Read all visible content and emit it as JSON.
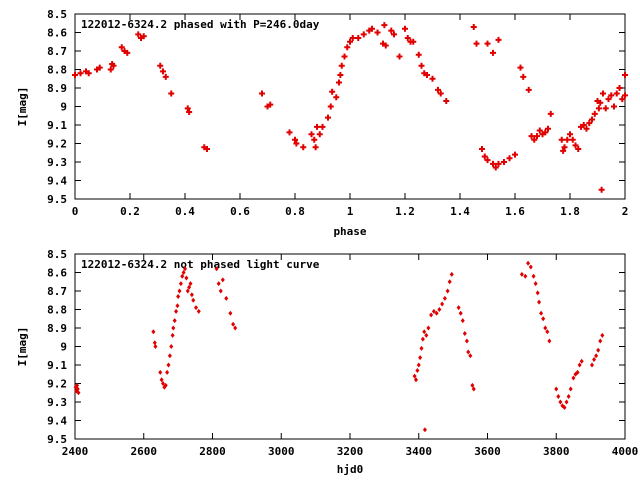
{
  "chart_data": [
    {
      "type": "scatter",
      "title": "122012-6324.2 phased with P=246.0day",
      "xlabel": "phase",
      "ylabel": "I[mag]",
      "xlim": [
        0,
        2
      ],
      "ylim": [
        8.5,
        9.5
      ],
      "y_inverted": true,
      "xticks": [
        0,
        0.2,
        0.4,
        0.6,
        0.8,
        1,
        1.2,
        1.4,
        1.6,
        1.8,
        2
      ],
      "xticklabels": [
        "0",
        "0.2",
        "0.4",
        "0.6",
        "0.8",
        "1",
        "1.2",
        "1.4",
        "1.6",
        "1.8",
        "2"
      ],
      "yticks": [
        8.5,
        8.6,
        8.7,
        8.8,
        8.9,
        9,
        9.1,
        9.2,
        9.3,
        9.4,
        9.5
      ],
      "yticklabels": [
        "8.5",
        "8.6",
        "8.7",
        "8.8",
        "8.9",
        "9",
        "9.1",
        "9.2",
        "9.3",
        "9.4",
        "9.5"
      ],
      "marker": "cross",
      "color": "#e00000",
      "points": [
        [
          0.0,
          8.83
        ],
        [
          0.02,
          8.82
        ],
        [
          0.04,
          8.81
        ],
        [
          0.05,
          8.82
        ],
        [
          0.08,
          8.8
        ],
        [
          0.09,
          8.79
        ],
        [
          0.13,
          8.8
        ],
        [
          0.135,
          8.77
        ],
        [
          0.14,
          8.78
        ],
        [
          0.17,
          8.68
        ],
        [
          0.18,
          8.7
        ],
        [
          0.19,
          8.71
        ],
        [
          0.23,
          8.61
        ],
        [
          0.24,
          8.63
        ],
        [
          0.25,
          8.62
        ],
        [
          0.31,
          8.78
        ],
        [
          0.32,
          8.81
        ],
        [
          0.33,
          8.84
        ],
        [
          0.35,
          8.93
        ],
        [
          0.41,
          9.01
        ],
        [
          0.415,
          9.03
        ],
        [
          0.47,
          9.22
        ],
        [
          0.48,
          9.23
        ],
        [
          0.68,
          8.93
        ],
        [
          0.7,
          9.0
        ],
        [
          0.71,
          8.99
        ],
        [
          0.78,
          9.14
        ],
        [
          0.8,
          9.18
        ],
        [
          0.805,
          9.2
        ],
        [
          0.83,
          9.22
        ],
        [
          0.86,
          9.15
        ],
        [
          0.87,
          9.18
        ],
        [
          0.875,
          9.22
        ],
        [
          0.88,
          9.11
        ],
        [
          0.89,
          9.15
        ],
        [
          0.9,
          9.11
        ],
        [
          0.92,
          9.06
        ],
        [
          0.93,
          9.0
        ],
        [
          0.935,
          8.92
        ],
        [
          0.95,
          8.95
        ],
        [
          0.96,
          8.87
        ],
        [
          0.965,
          8.83
        ],
        [
          0.97,
          8.78
        ],
        [
          0.98,
          8.73
        ],
        [
          0.99,
          8.68
        ],
        [
          1.0,
          8.65
        ],
        [
          1.01,
          8.63
        ],
        [
          1.03,
          8.63
        ],
        [
          1.05,
          8.61
        ],
        [
          1.07,
          8.59
        ],
        [
          1.08,
          8.58
        ],
        [
          1.1,
          8.6
        ],
        [
          1.12,
          8.66
        ],
        [
          1.125,
          8.56
        ],
        [
          1.13,
          8.67
        ],
        [
          1.15,
          8.59
        ],
        [
          1.16,
          8.61
        ],
        [
          1.18,
          8.73
        ],
        [
          1.2,
          8.58
        ],
        [
          1.21,
          8.63
        ],
        [
          1.22,
          8.65
        ],
        [
          1.23,
          8.65
        ],
        [
          1.25,
          8.72
        ],
        [
          1.26,
          8.78
        ],
        [
          1.27,
          8.82
        ],
        [
          1.28,
          8.83
        ],
        [
          1.3,
          8.85
        ],
        [
          1.32,
          8.91
        ],
        [
          1.33,
          8.93
        ],
        [
          1.35,
          8.97
        ],
        [
          1.45,
          8.57
        ],
        [
          1.46,
          8.66
        ],
        [
          1.5,
          8.66
        ],
        [
          1.52,
          8.71
        ],
        [
          1.54,
          8.64
        ],
        [
          1.48,
          9.23
        ],
        [
          1.49,
          9.27
        ],
        [
          1.5,
          9.29
        ],
        [
          1.52,
          9.31
        ],
        [
          1.53,
          9.33
        ],
        [
          1.54,
          9.31
        ],
        [
          1.56,
          9.3
        ],
        [
          1.58,
          9.28
        ],
        [
          1.6,
          9.26
        ],
        [
          1.62,
          8.79
        ],
        [
          1.63,
          8.84
        ],
        [
          1.65,
          8.91
        ],
        [
          1.66,
          9.16
        ],
        [
          1.67,
          9.18
        ],
        [
          1.68,
          9.16
        ],
        [
          1.69,
          9.13
        ],
        [
          1.7,
          9.15
        ],
        [
          1.71,
          9.14
        ],
        [
          1.72,
          9.12
        ],
        [
          1.73,
          9.04
        ],
        [
          1.77,
          9.18
        ],
        [
          1.775,
          9.24
        ],
        [
          1.78,
          9.22
        ],
        [
          1.79,
          9.18
        ],
        [
          1.8,
          9.15
        ],
        [
          1.81,
          9.18
        ],
        [
          1.82,
          9.21
        ],
        [
          1.83,
          9.23
        ],
        [
          1.84,
          9.11
        ],
        [
          1.85,
          9.1
        ],
        [
          1.86,
          9.12
        ],
        [
          1.87,
          9.09
        ],
        [
          1.88,
          9.07
        ],
        [
          1.89,
          9.04
        ],
        [
          1.9,
          8.97
        ],
        [
          1.905,
          9.01
        ],
        [
          1.91,
          8.98
        ],
        [
          1.915,
          9.45
        ],
        [
          1.92,
          8.93
        ],
        [
          1.93,
          9.01
        ],
        [
          1.94,
          8.96
        ],
        [
          1.95,
          8.94
        ],
        [
          1.96,
          9.0
        ],
        [
          1.97,
          8.93
        ],
        [
          1.98,
          8.9
        ],
        [
          1.99,
          8.96
        ],
        [
          2.0,
          8.83
        ],
        [
          2.0,
          8.94
        ]
      ]
    },
    {
      "type": "scatter",
      "title": "122012-6324.2 not phased light curve",
      "xlabel": "hjd0",
      "ylabel": "I[mag]",
      "xlim": [
        2400,
        4000
      ],
      "ylim": [
        8.5,
        9.5
      ],
      "y_inverted": true,
      "xticks": [
        2400,
        2600,
        2800,
        3000,
        3200,
        3400,
        3600,
        3800,
        4000
      ],
      "xticklabels": [
        "2400",
        "2600",
        "2800",
        "3000",
        "3200",
        "3400",
        "3600",
        "3800",
        "4000"
      ],
      "yticks": [
        8.5,
        8.6,
        8.7,
        8.8,
        8.9,
        9,
        9.1,
        9.2,
        9.3,
        9.4,
        9.5
      ],
      "yticklabels": [
        "8.5",
        "8.6",
        "8.7",
        "8.8",
        "8.9",
        "9",
        "9.1",
        "9.2",
        "9.3",
        "9.4",
        "9.5"
      ],
      "marker": "diamond",
      "color": "#e00000",
      "points": [
        [
          2402,
          9.22
        ],
        [
          2404,
          9.24
        ],
        [
          2406,
          9.21
        ],
        [
          2408,
          9.23
        ],
        [
          2410,
          9.25
        ],
        [
          2628,
          8.92
        ],
        [
          2632,
          8.98
        ],
        [
          2634,
          9.0
        ],
        [
          2648,
          9.14
        ],
        [
          2652,
          9.18
        ],
        [
          2656,
          9.2
        ],
        [
          2660,
          9.22
        ],
        [
          2664,
          9.21
        ],
        [
          2668,
          9.14
        ],
        [
          2672,
          9.1
        ],
        [
          2676,
          9.05
        ],
        [
          2680,
          9.0
        ],
        [
          2684,
          8.94
        ],
        [
          2686,
          8.9
        ],
        [
          2690,
          8.86
        ],
        [
          2694,
          8.81
        ],
        [
          2698,
          8.78
        ],
        [
          2700,
          8.73
        ],
        [
          2704,
          8.7
        ],
        [
          2708,
          8.66
        ],
        [
          2712,
          8.62
        ],
        [
          2716,
          8.6
        ],
        [
          2720,
          8.58
        ],
        [
          2724,
          8.63
        ],
        [
          2728,
          8.7
        ],
        [
          2732,
          8.68
        ],
        [
          2736,
          8.66
        ],
        [
          2740,
          8.72
        ],
        [
          2744,
          8.75
        ],
        [
          2752,
          8.79
        ],
        [
          2760,
          8.81
        ],
        [
          2812,
          8.58
        ],
        [
          2818,
          8.66
        ],
        [
          2824,
          8.7
        ],
        [
          2830,
          8.64
        ],
        [
          2840,
          8.74
        ],
        [
          2852,
          8.82
        ],
        [
          2860,
          8.88
        ],
        [
          2866,
          8.9
        ],
        [
          3388,
          9.16
        ],
        [
          3392,
          9.18
        ],
        [
          3396,
          9.13
        ],
        [
          3400,
          9.1
        ],
        [
          3404,
          9.06
        ],
        [
          3408,
          9.01
        ],
        [
          3412,
          8.96
        ],
        [
          3416,
          8.92
        ],
        [
          3418,
          9.45
        ],
        [
          3422,
          8.94
        ],
        [
          3428,
          8.9
        ],
        [
          3436,
          8.83
        ],
        [
          3444,
          8.81
        ],
        [
          3452,
          8.82
        ],
        [
          3460,
          8.8
        ],
        [
          3468,
          8.77
        ],
        [
          3476,
          8.74
        ],
        [
          3484,
          8.7
        ],
        [
          3490,
          8.65
        ],
        [
          3496,
          8.61
        ],
        [
          3516,
          8.79
        ],
        [
          3522,
          8.82
        ],
        [
          3528,
          8.86
        ],
        [
          3534,
          8.93
        ],
        [
          3540,
          8.97
        ],
        [
          3544,
          9.03
        ],
        [
          3550,
          9.05
        ],
        [
          3556,
          9.21
        ],
        [
          3560,
          9.23
        ],
        [
          3700,
          8.61
        ],
        [
          3710,
          8.62
        ],
        [
          3718,
          8.55
        ],
        [
          3726,
          8.57
        ],
        [
          3734,
          8.62
        ],
        [
          3740,
          8.66
        ],
        [
          3746,
          8.71
        ],
        [
          3750,
          8.76
        ],
        [
          3756,
          8.82
        ],
        [
          3762,
          8.85
        ],
        [
          3768,
          8.9
        ],
        [
          3774,
          8.92
        ],
        [
          3780,
          8.97
        ],
        [
          3800,
          9.23
        ],
        [
          3806,
          9.27
        ],
        [
          3812,
          9.3
        ],
        [
          3818,
          9.32
        ],
        [
          3824,
          9.33
        ],
        [
          3830,
          9.3
        ],
        [
          3836,
          9.27
        ],
        [
          3842,
          9.23
        ],
        [
          3850,
          9.17
        ],
        [
          3856,
          9.15
        ],
        [
          3862,
          9.14
        ],
        [
          3868,
          9.1
        ],
        [
          3874,
          9.08
        ],
        [
          3904,
          9.1
        ],
        [
          3910,
          9.07
        ],
        [
          3916,
          9.05
        ],
        [
          3922,
          9.02
        ],
        [
          3928,
          8.97
        ],
        [
          3934,
          8.94
        ]
      ]
    }
  ]
}
